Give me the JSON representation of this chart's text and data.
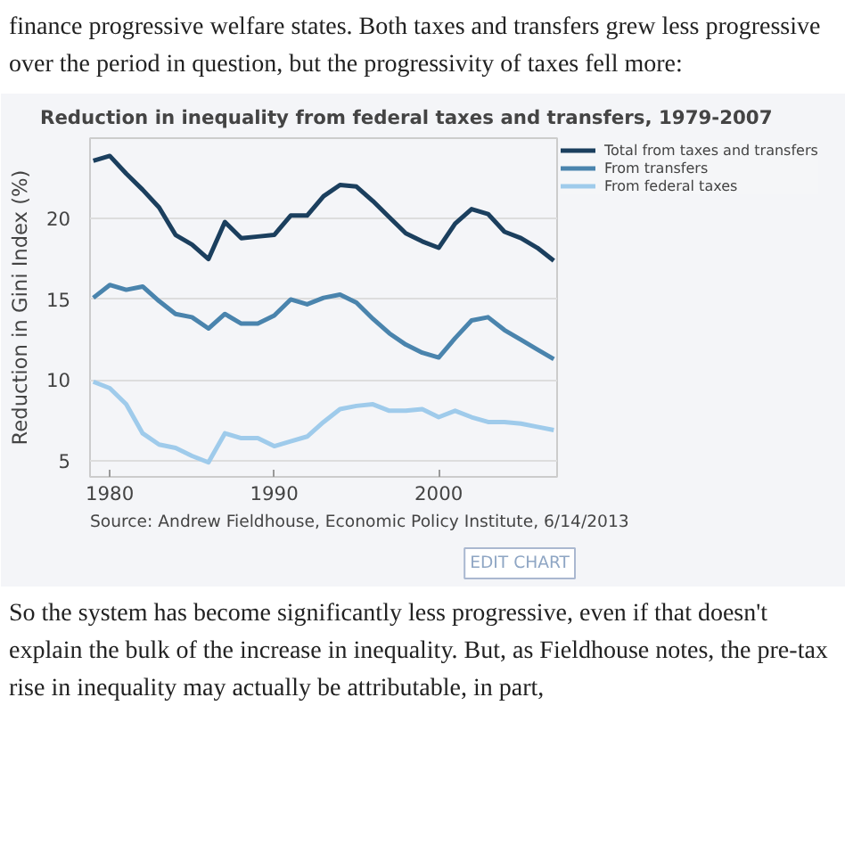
{
  "chart_data": {
    "type": "line",
    "title": "Reduction in inequality from federal taxes and transfers, 1979-2007",
    "ylabel": "Reduction in Gini Index (%)",
    "annotations": [
      "finance progressive welfare states. Both taxes and transfers grew less progressive over the period in question, but the progressivity of taxes fell more:",
      "Source: Andrew Fieldhouse, Economic Policy Institute, 6/14/2013",
      "EDIT CHART",
      "So the system has become significantly less progressive, even if that doesn't explain the bulk of the increase in inequality. But, as Fieldhouse notes, the pre-tax rise in inequality may actually be attributable, in part,"
    ],
    "x": [
      1979,
      1980,
      1981,
      1982,
      1983,
      1984,
      1985,
      1986,
      1987,
      1988,
      1989,
      1990,
      1991,
      1992,
      1993,
      1994,
      1995,
      1996,
      1997,
      1998,
      1999,
      2000,
      2001,
      2002,
      2003,
      2004,
      2005,
      2006,
      2007
    ],
    "series": [
      {
        "name": "Total from taxes and transfers",
        "color": "#1b3f5e",
        "values": [
          23.6,
          23.9,
          22.8,
          21.8,
          20.7,
          19.0,
          18.4,
          17.5,
          19.8,
          18.8,
          18.9,
          19.0,
          20.2,
          20.2,
          21.4,
          22.1,
          22.0,
          21.1,
          20.1,
          19.1,
          18.6,
          18.2,
          19.7,
          20.6,
          20.3,
          19.2,
          18.8,
          18.2,
          17.4
        ]
      },
      {
        "name": "From transfers",
        "color": "#4a84ad",
        "values": [
          15.1,
          15.9,
          15.6,
          15.8,
          14.9,
          14.1,
          13.9,
          13.2,
          14.1,
          13.5,
          13.5,
          14.0,
          15.0,
          14.7,
          15.1,
          15.3,
          14.8,
          13.8,
          12.9,
          12.2,
          11.7,
          11.4,
          12.6,
          13.7,
          13.9,
          13.1,
          12.5,
          11.9,
          11.3
        ]
      },
      {
        "name": "From federal taxes",
        "color": "#9fcbeb",
        "values": [
          9.9,
          9.5,
          8.5,
          6.7,
          6.0,
          5.8,
          5.3,
          4.9,
          6.7,
          6.4,
          6.4,
          5.9,
          6.2,
          6.5,
          7.4,
          8.2,
          8.4,
          8.5,
          8.1,
          8.1,
          8.2,
          7.7,
          8.1,
          7.7,
          7.4,
          7.4,
          7.3,
          7.1,
          6.9
        ]
      }
    ],
    "xlim": [
      1978.8,
      2007.2
    ],
    "xticks": [
      1980,
      1990,
      2000
    ],
    "ylim": [
      4,
      25
    ],
    "yticks": [
      5,
      10,
      15,
      20
    ],
    "grid": "y",
    "legend": "top right",
    "marker": "none",
    "line_style": "solid"
  }
}
